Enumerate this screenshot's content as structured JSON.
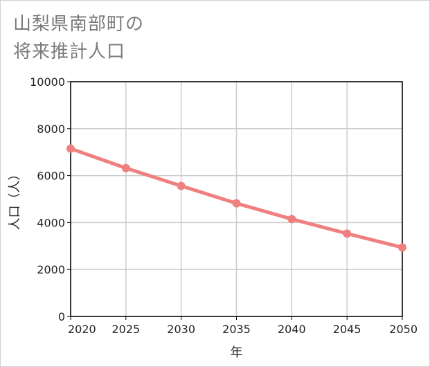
{
  "chart_data": {
    "type": "line",
    "title_lines": [
      "山梨県南部町の",
      "将来推計人口"
    ],
    "xlabel": "年",
    "ylabel": "人口（人）",
    "x": [
      2020,
      2025,
      2030,
      2035,
      2040,
      2045,
      2050
    ],
    "x_ticks": [
      "2020",
      "2025",
      "2030",
      "2035",
      "2040",
      "2045",
      "2050"
    ],
    "ylim": [
      0,
      10000
    ],
    "y_ticks": [
      "0",
      "2000",
      "4000",
      "6000",
      "8000",
      "10000"
    ],
    "y_tick_values": [
      0,
      2000,
      4000,
      6000,
      8000,
      10000
    ],
    "grid": true,
    "series": [
      {
        "name": "将来推計人口",
        "color": "#f08080",
        "values": [
          7150,
          6320,
          5560,
          4820,
          4150,
          3530,
          2940
        ]
      }
    ]
  }
}
